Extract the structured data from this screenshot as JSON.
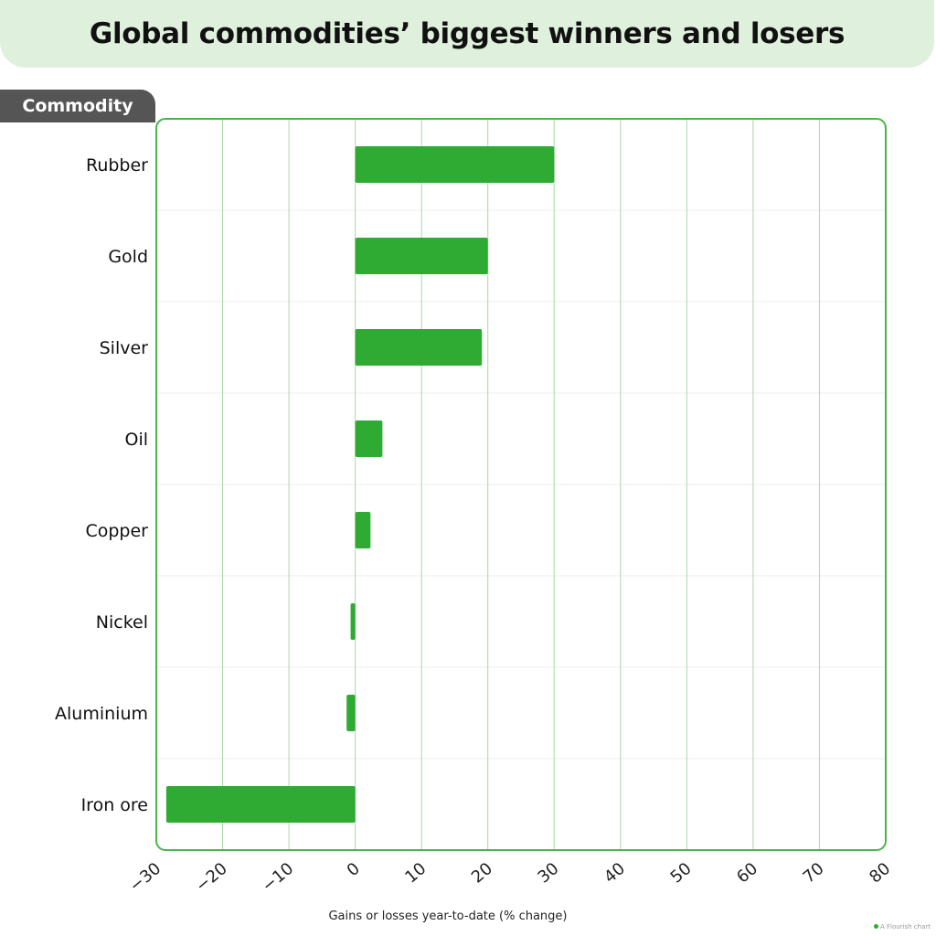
{
  "chart_data": {
    "type": "bar",
    "orientation": "horizontal",
    "title": "Global commodities’ biggest winners and losers",
    "category_header": "Commodity",
    "categories": [
      "Rubber",
      "Gold",
      "Silver",
      "Oil",
      "Copper",
      "Nickel",
      "Aluminium",
      "Iron ore"
    ],
    "values": [
      30,
      20,
      19.1,
      4.1,
      2.3,
      -0.7,
      -1.3,
      -28.5
    ],
    "xlabel": "Gains or losses year-to-date (% change)",
    "xlim": [
      -30,
      80
    ],
    "xticks": [
      "-30",
      "-20",
      "-10",
      "0",
      "10",
      "20",
      "30",
      "40",
      "50",
      "60",
      "70",
      "80"
    ],
    "bar_color": "#2fab33",
    "grid": true,
    "credit": "A Flourish chart"
  }
}
